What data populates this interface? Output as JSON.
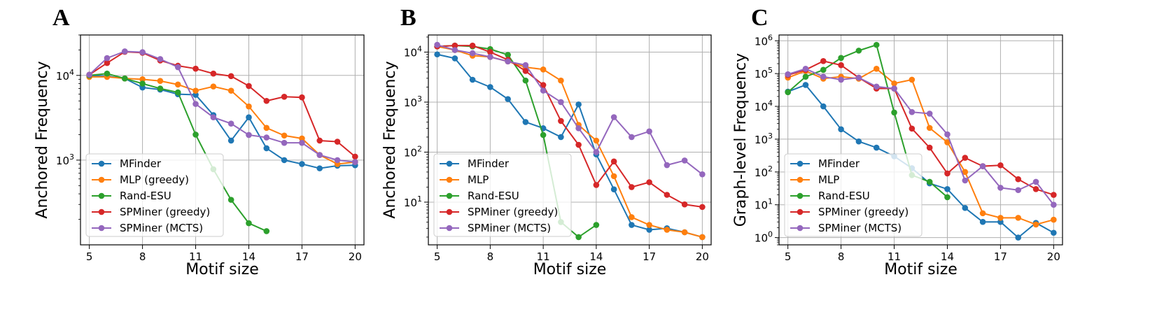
{
  "colors": {
    "MFinder": "#1f77b4",
    "MLP": "#ff7f0e",
    "Rand-ESU": "#2ca02c",
    "SPMiner (greedy)": "#d62728",
    "SPMiner (MCTS)": "#9467bd"
  },
  "chart_data": [
    {
      "type": "line",
      "panel": "A",
      "xlabel": "Motif size",
      "ylabel": "Anchored Frequency",
      "yscale": "log",
      "xlim": [
        4.5,
        20.5
      ],
      "ylim": [
        100,
        30000
      ],
      "xticks": [
        5,
        8,
        11,
        14,
        17,
        20
      ],
      "yticks": [
        {
          "v": 1000,
          "label": "10",
          "exp": "3"
        },
        {
          "v": 10000,
          "label": "10",
          "exp": "4"
        }
      ],
      "grid": true,
      "legend_position": "lower-left",
      "series": [
        {
          "name": "MFinder",
          "color_key": "MFinder",
          "x": [
            5,
            6,
            7,
            8,
            9,
            10,
            11,
            12,
            13,
            14,
            15,
            16,
            17,
            18,
            19,
            20
          ],
          "y": [
            10000,
            9800,
            9200,
            7200,
            6800,
            6000,
            5900,
            3400,
            1700,
            3200,
            1380,
            1000,
            900,
            800,
            860,
            870
          ]
        },
        {
          "name": "MLP (greedy)",
          "color_key": "MLP",
          "x": [
            5,
            6,
            7,
            8,
            9,
            10,
            11,
            12,
            13,
            14,
            15,
            16,
            17,
            18,
            19,
            20
          ],
          "y": [
            9600,
            9600,
            9200,
            9000,
            8600,
            7800,
            6600,
            7400,
            6600,
            4300,
            2400,
            1950,
            1800,
            1150,
            900,
            950
          ]
        },
        {
          "name": "Rand-ESU",
          "color_key": "Rand-ESU",
          "x": [
            5,
            6,
            7,
            8,
            9,
            10,
            11,
            12,
            13,
            14,
            15
          ],
          "y": [
            10000,
            10500,
            9200,
            8000,
            7000,
            6300,
            2000,
            780,
            340,
            180,
            145
          ]
        },
        {
          "name": "SPMiner (greedy)",
          "color_key": "SPMiner (greedy)",
          "x": [
            5,
            6,
            7,
            8,
            9,
            10,
            11,
            12,
            13,
            14,
            15,
            16,
            17,
            18,
            19,
            20
          ],
          "y": [
            10200,
            14000,
            19000,
            18500,
            15000,
            13000,
            12000,
            10500,
            9800,
            7500,
            5000,
            5600,
            5500,
            1700,
            1650,
            1100
          ]
        },
        {
          "name": "SPMiner (MCTS)",
          "color_key": "SPMiner (MCTS)",
          "x": [
            5,
            6,
            7,
            8,
            9,
            10,
            11,
            12,
            13,
            14,
            15,
            16,
            17,
            18,
            19,
            20
          ],
          "y": [
            10200,
            16000,
            19200,
            18800,
            15600,
            12500,
            4600,
            3200,
            2700,
            1980,
            1850,
            1600,
            1600,
            1150,
            1000,
            950
          ]
        }
      ]
    },
    {
      "type": "line",
      "panel": "B",
      "xlabel": "Motif size",
      "ylabel": "Anchored Frequency",
      "yscale": "log",
      "xlim": [
        4.5,
        20.5
      ],
      "ylim": [
        1.4,
        22000
      ],
      "xticks": [
        5,
        8,
        11,
        14,
        17,
        20
      ],
      "yticks": [
        {
          "v": 10,
          "label": "10",
          "exp": "1"
        },
        {
          "v": 100,
          "label": "10",
          "exp": "2"
        },
        {
          "v": 1000,
          "label": "10",
          "exp": "3"
        },
        {
          "v": 10000,
          "label": "10",
          "exp": "4"
        }
      ],
      "grid": true,
      "legend_position": "lower-left",
      "series": [
        {
          "name": "MFinder",
          "color_key": "MFinder",
          "x": [
            5,
            6,
            7,
            8,
            9,
            10,
            11,
            12,
            13,
            14,
            15,
            16,
            17,
            18,
            19,
            20
          ],
          "y": [
            9000,
            7500,
            2800,
            2000,
            1150,
            400,
            300,
            200,
            900,
            90,
            18,
            3.5,
            2.8,
            3.0,
            2.5,
            2.0
          ]
        },
        {
          "name": "MLP",
          "color_key": "MLP",
          "x": [
            5,
            6,
            7,
            8,
            9,
            10,
            11,
            12,
            13,
            14,
            15,
            16,
            17,
            18,
            19,
            20
          ],
          "y": [
            13000,
            11000,
            8500,
            8000,
            6500,
            5000,
            4500,
            2700,
            350,
            170,
            33,
            5,
            3.5,
            2.8,
            2.5,
            2.0
          ]
        },
        {
          "name": "Rand-ESU",
          "color_key": "Rand-ESU",
          "x": [
            5,
            6,
            7,
            8,
            9,
            10,
            11,
            12,
            13,
            14
          ],
          "y": [
            13000,
            13500,
            13000,
            11500,
            8800,
            2700,
            220,
            4,
            2.0,
            3.5
          ]
        },
        {
          "name": "SPMiner (greedy)",
          "color_key": "SPMiner (greedy)",
          "x": [
            5,
            6,
            7,
            8,
            9,
            10,
            11,
            12,
            13,
            14,
            15,
            16,
            17,
            18,
            19,
            20
          ],
          "y": [
            13000,
            13500,
            13500,
            10000,
            7000,
            4200,
            2200,
            420,
            140,
            22,
            65,
            20,
            25,
            14,
            9,
            8
          ]
        },
        {
          "name": "SPMiner (MCTS)",
          "color_key": "SPMiner (MCTS)",
          "x": [
            5,
            6,
            7,
            8,
            9,
            10,
            11,
            12,
            13,
            14,
            15,
            16,
            17,
            18,
            19,
            20
          ],
          "y": [
            14000,
            11000,
            9500,
            8000,
            6500,
            5500,
            1700,
            1000,
            300,
            100,
            500,
            200,
            260,
            55,
            68,
            36
          ]
        }
      ]
    },
    {
      "type": "line",
      "panel": "C",
      "xlabel": "Motif size",
      "ylabel": "Graph-level Frequency",
      "yscale": "log",
      "xlim": [
        4.5,
        20.5
      ],
      "ylim": [
        0.6,
        1500000
      ],
      "xticks": [
        5,
        8,
        11,
        14,
        17,
        20
      ],
      "yticks": [
        {
          "v": 1,
          "label": "10",
          "exp": "0"
        },
        {
          "v": 10,
          "label": "10",
          "exp": "1"
        },
        {
          "v": 100,
          "label": "10",
          "exp": "2"
        },
        {
          "v": 1000,
          "label": "10",
          "exp": "3"
        },
        {
          "v": 10000,
          "label": "10",
          "exp": "4"
        },
        {
          "v": 100000,
          "label": "10",
          "exp": "5"
        },
        {
          "v": 1000000,
          "label": "10",
          "exp": "6"
        }
      ],
      "grid": true,
      "legend_position": "lower-left",
      "series": [
        {
          "name": "MFinder",
          "color_key": "MFinder",
          "x": [
            5,
            6,
            7,
            8,
            9,
            10,
            11,
            12,
            13,
            14,
            15,
            16,
            17,
            18,
            19,
            20
          ],
          "y": [
            28000,
            45000,
            10000,
            2000,
            850,
            550,
            300,
            130,
            45,
            30,
            8,
            3,
            3,
            1,
            2.8,
            1.4
          ]
        },
        {
          "name": "MLP",
          "color_key": "MLP",
          "x": [
            5,
            6,
            7,
            8,
            9,
            10,
            11,
            12,
            13,
            14,
            15,
            16,
            17,
            18,
            19,
            20
          ],
          "y": [
            75000,
            120000,
            70000,
            80000,
            70000,
            140000,
            50000,
            65000,
            2200,
            800,
            100,
            5.5,
            4,
            4,
            2.5,
            3.5
          ]
        },
        {
          "name": "Rand-ESU",
          "color_key": "Rand-ESU",
          "x": [
            5,
            6,
            7,
            8,
            9,
            10,
            11,
            12,
            13,
            14
          ],
          "y": [
            27000,
            80000,
            130000,
            300000,
            500000,
            750000,
            6500,
            80,
            50,
            17
          ]
        },
        {
          "name": "SPMiner (greedy)",
          "color_key": "SPMiner (greedy)",
          "x": [
            5,
            6,
            7,
            8,
            9,
            10,
            11,
            12,
            13,
            14,
            15,
            16,
            17,
            18,
            19,
            20
          ],
          "y": [
            90000,
            130000,
            240000,
            180000,
            75000,
            35000,
            35000,
            2100,
            550,
            90,
            270,
            150,
            160,
            60,
            30,
            20
          ]
        },
        {
          "name": "SPMiner (MCTS)",
          "color_key": "SPMiner (MCTS)",
          "x": [
            5,
            6,
            7,
            8,
            9,
            10,
            11,
            12,
            13,
            14,
            15,
            16,
            17,
            18,
            19,
            20
          ],
          "y": [
            95000,
            140000,
            80000,
            65000,
            75000,
            40000,
            35000,
            6700,
            6000,
            1400,
            55,
            150,
            33,
            28,
            50,
            10
          ]
        }
      ]
    }
  ]
}
